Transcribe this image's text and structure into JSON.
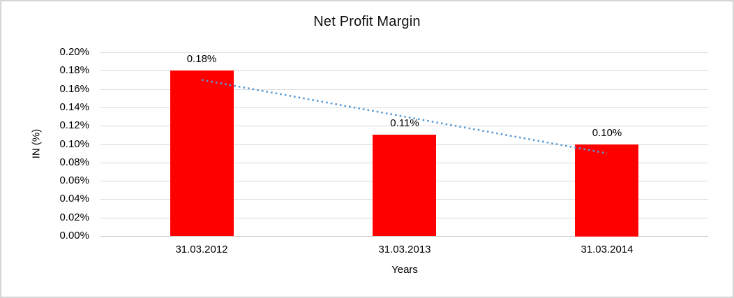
{
  "chart_data": {
    "type": "bar",
    "title": "Net Profit Margin",
    "xlabel": "Years",
    "ylabel": "IN (%)",
    "categories": [
      "31.03.2012",
      "31.03.2013",
      "31.03.2014"
    ],
    "values": [
      0.18,
      0.11,
      0.1
    ],
    "data_labels": [
      "0.18%",
      "0.11%",
      "0.10%"
    ],
    "yticks_top_to_bottom": [
      "0.20%",
      "0.18%",
      "0.16%",
      "0.14%",
      "0.12%",
      "0.10%",
      "0.08%",
      "0.06%",
      "0.04%",
      "0.02%",
      "0.00%"
    ],
    "ylim": [
      0,
      0.2
    ],
    "ytick_step": 0.02,
    "grid": "horizontal",
    "legend": "none",
    "trendline": {
      "type": "linear",
      "style": "dotted",
      "start_value": 0.17,
      "end_value": 0.09
    },
    "colors": {
      "bar": "#ff0000",
      "trendline": "#5b9bd5",
      "gridline": "#d9d9d9",
      "axis_line": "#bfbfbf",
      "text": "#000000",
      "title_text": "#111111",
      "frame_border": "#d5d5d5",
      "background": "#ffffff"
    }
  }
}
